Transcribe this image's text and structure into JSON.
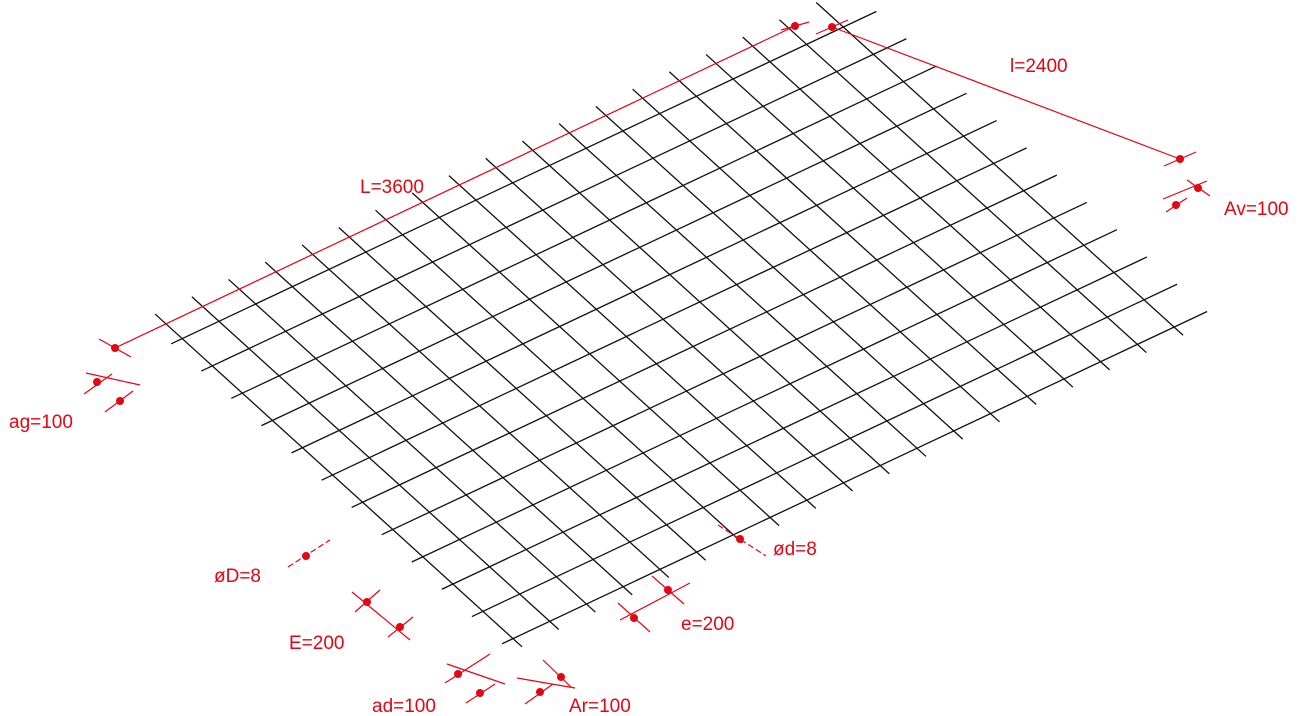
{
  "colors": {
    "bars": "#111111",
    "annotation": "#e30613",
    "background": "#ffffff"
  },
  "labels": {
    "length_total": "L=3600",
    "width_total": "l=2400",
    "overhang_front": "Av=100",
    "overhang_left": "ag=100",
    "overhang_right": "ad=100",
    "overhang_rear": "Ar=100",
    "long_bar_diameter": "øD=8",
    "cross_bar_diameter": "ød=8",
    "long_bar_spacing": "E=200",
    "cross_bar_spacing": "e=200"
  }
}
